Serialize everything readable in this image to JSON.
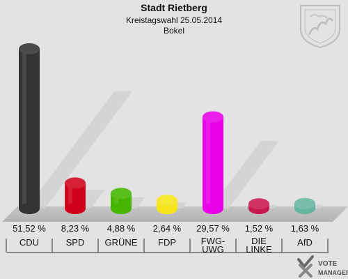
{
  "header": {
    "title": "Stadt Rietberg",
    "subtitle": "Kreistagswahl 25.05.2014",
    "district": "Bokel"
  },
  "chart_data": {
    "type": "bar",
    "categories": [
      "CDU",
      "SPD",
      "GRÜNE",
      "FDP",
      "FWG-UWG",
      "DIE LINKE",
      "AfD"
    ],
    "category_lines": [
      [
        "CDU"
      ],
      [
        "SPD"
      ],
      [
        "GRÜNE"
      ],
      [
        "FDP"
      ],
      [
        "FWG-",
        "UWG"
      ],
      [
        "DIE",
        "LINKE"
      ],
      [
        "AfD"
      ]
    ],
    "values": [
      51.52,
      8.23,
      4.88,
      2.64,
      29.57,
      1.52,
      1.63
    ],
    "value_labels": [
      "51,52 %",
      "8,23 %",
      "4,88 %",
      "2,64 %",
      "29,57 %",
      "1,52 %",
      "1,63 %"
    ],
    "colors": [
      "#333333",
      "#d0021b",
      "#45b500",
      "#f5e51a",
      "#e800e8",
      "#c8174e",
      "#67b4a0"
    ],
    "ylim": [
      0,
      55
    ],
    "grid": false,
    "legend": "none"
  },
  "branding": {
    "logo_text_1": "VOTE",
    "logo_text_2": "MANAGER",
    "logo_icon": "checkmark-x-icon",
    "crest_icon": "coat-of-arms-icon"
  }
}
